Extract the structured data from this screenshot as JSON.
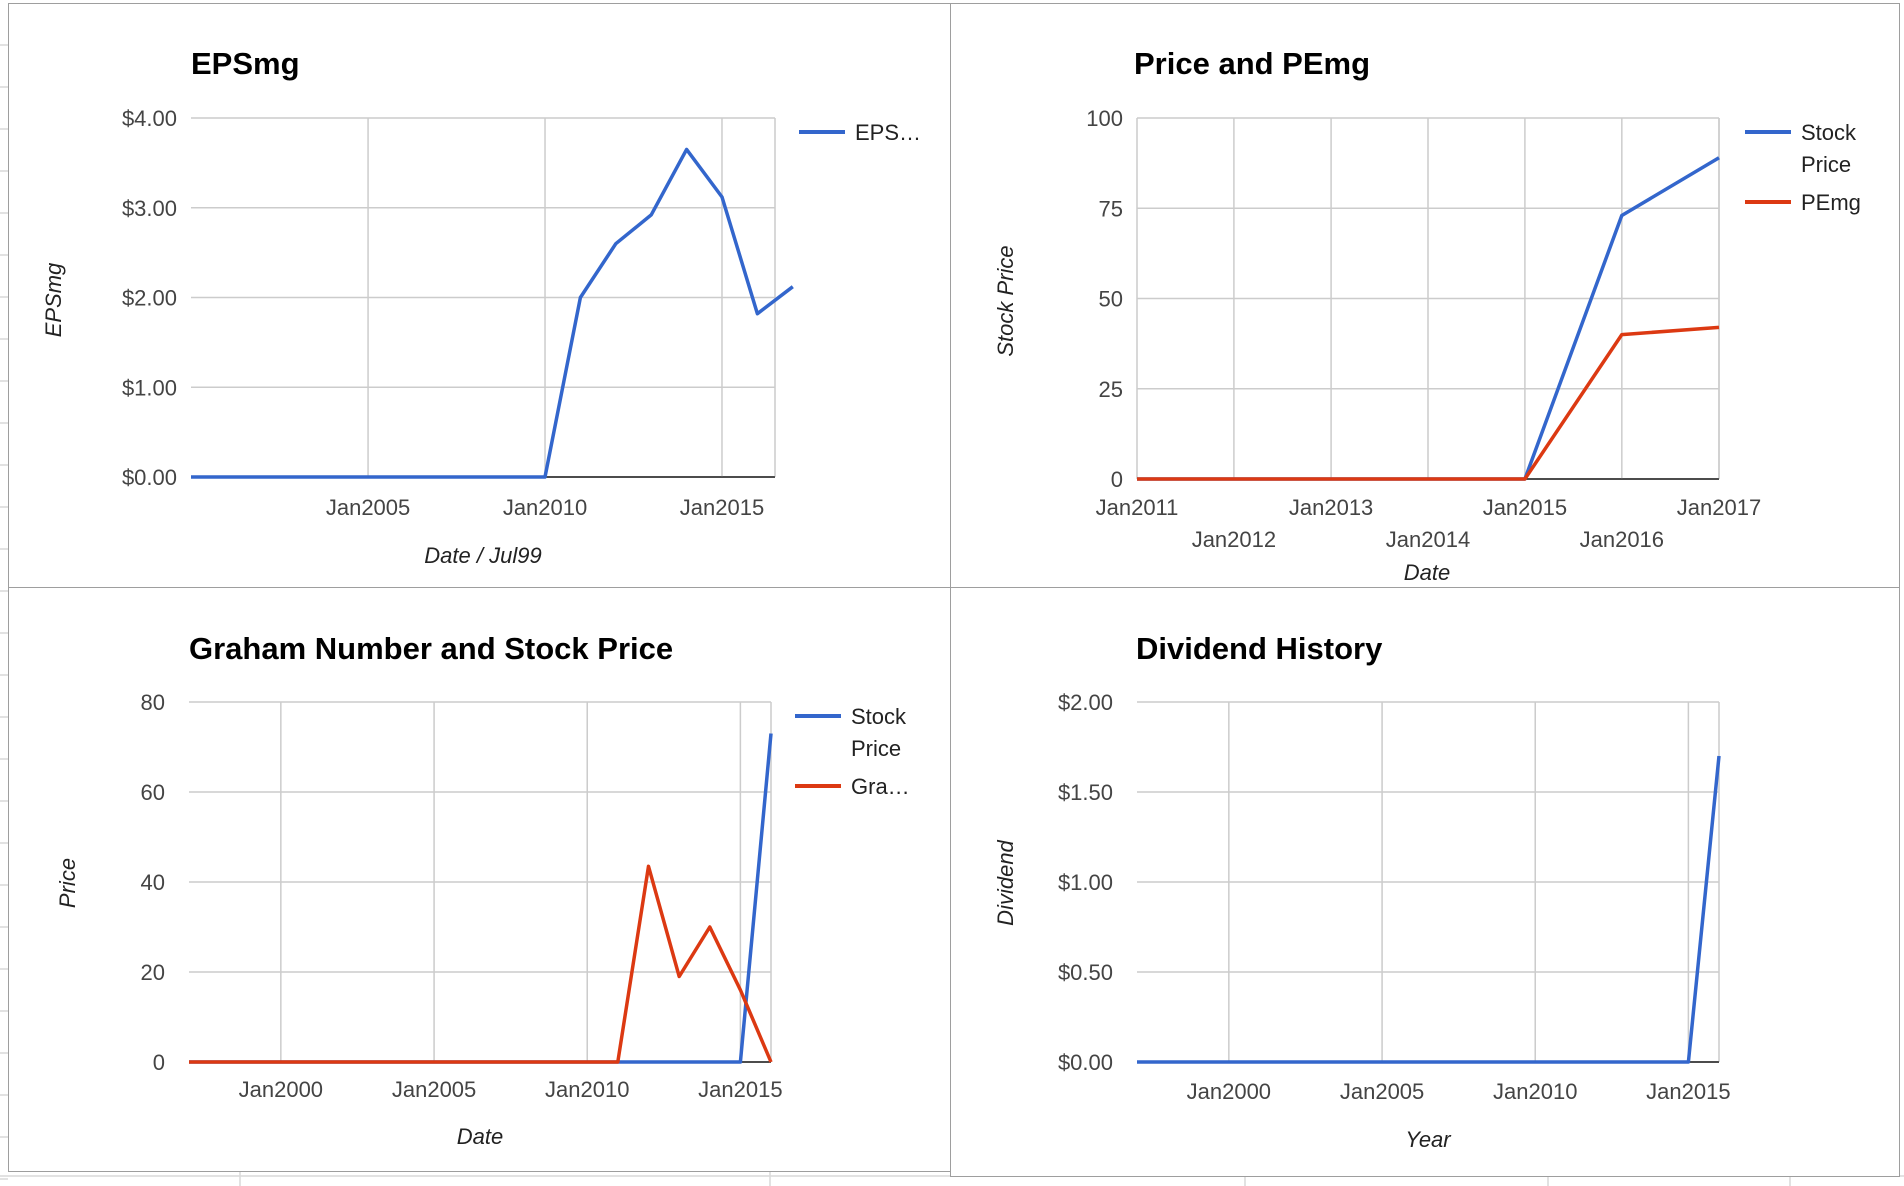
{
  "colors": {
    "blue": "#3366cc",
    "red": "#dc3912"
  },
  "chart_data": [
    {
      "type": "line",
      "title": "EPSmg",
      "xlabel": "Date / Jul99",
      "ylabel": "EPSmg",
      "x_type": "date",
      "xlim": [
        "2000-01-01",
        "2016-07-01"
      ],
      "ylim": [
        0,
        4
      ],
      "grid": true,
      "legend_position": "right",
      "x_ticks": [
        {
          "date": "2005-01-01",
          "label": "Jan2005"
        },
        {
          "date": "2010-01-01",
          "label": "Jan2010"
        },
        {
          "date": "2015-01-01",
          "label": "Jan2015"
        }
      ],
      "y_ticks": [
        {
          "value": 0,
          "label": "$0.00"
        },
        {
          "value": 1,
          "label": "$1.00"
        },
        {
          "value": 2,
          "label": "$2.00"
        },
        {
          "value": 3,
          "label": "$3.00"
        },
        {
          "value": 4,
          "label": "$4.00"
        }
      ],
      "series": [
        {
          "legend": [
            "EPS…"
          ],
          "color": "#3366cc",
          "points": [
            [
              "2000-01-01",
              0
            ],
            [
              "2010-01-01",
              0
            ],
            [
              "2011-01-01",
              2.0
            ],
            [
              "2012-01-01",
              2.6
            ],
            [
              "2013-01-01",
              2.92
            ],
            [
              "2014-01-01",
              3.65
            ],
            [
              "2015-01-01",
              3.12
            ],
            [
              "2016-01-01",
              1.82
            ],
            [
              "2017-01-01",
              2.12
            ]
          ]
        }
      ]
    },
    {
      "type": "line",
      "title": "Price and PEmg",
      "xlabel": "Date",
      "ylabel": "Stock Price",
      "x_type": "date",
      "xlim": [
        "2011-01-01",
        "2017-01-01"
      ],
      "ylim": [
        0,
        100
      ],
      "grid": true,
      "legend_position": "right",
      "x_ticks": [
        {
          "date": "2011-01-01",
          "label": "Jan2011",
          "row": 1
        },
        {
          "date": "2012-01-01",
          "label": "Jan2012",
          "row": 2
        },
        {
          "date": "2013-01-01",
          "label": "Jan2013",
          "row": 1
        },
        {
          "date": "2014-01-01",
          "label": "Jan2014",
          "row": 2
        },
        {
          "date": "2015-01-01",
          "label": "Jan2015",
          "row": 1
        },
        {
          "date": "2016-01-01",
          "label": "Jan2016",
          "row": 2
        },
        {
          "date": "2017-01-01",
          "label": "Jan2017",
          "row": 1
        }
      ],
      "y_ticks": [
        {
          "value": 0,
          "label": "0"
        },
        {
          "value": 25,
          "label": "25"
        },
        {
          "value": 50,
          "label": "50"
        },
        {
          "value": 75,
          "label": "75"
        },
        {
          "value": 100,
          "label": "100"
        }
      ],
      "series": [
        {
          "legend": [
            "Stock",
            "Price"
          ],
          "color": "#3366cc",
          "points": [
            [
              "2011-01-01",
              0
            ],
            [
              "2015-01-01",
              0
            ],
            [
              "2016-01-01",
              73
            ],
            [
              "2017-01-01",
              89
            ]
          ]
        },
        {
          "legend": [
            "PEmg"
          ],
          "color": "#dc3912",
          "points": [
            [
              "2011-01-01",
              0
            ],
            [
              "2015-01-01",
              0
            ],
            [
              "2016-01-01",
              40
            ],
            [
              "2017-01-01",
              42
            ]
          ]
        }
      ]
    },
    {
      "type": "line",
      "title": "Graham Number and Stock Price",
      "xlabel": "Date",
      "ylabel": "Price",
      "x_type": "date",
      "xlim": [
        "1997-01-01",
        "2016-01-01"
      ],
      "ylim": [
        0,
        80
      ],
      "grid": true,
      "legend_position": "right",
      "x_ticks": [
        {
          "date": "2000-01-01",
          "label": "Jan2000"
        },
        {
          "date": "2005-01-01",
          "label": "Jan2005"
        },
        {
          "date": "2010-01-01",
          "label": "Jan2010"
        },
        {
          "date": "2015-01-01",
          "label": "Jan2015"
        }
      ],
      "y_ticks": [
        {
          "value": 0,
          "label": "0"
        },
        {
          "value": 20,
          "label": "20"
        },
        {
          "value": 40,
          "label": "40"
        },
        {
          "value": 60,
          "label": "60"
        },
        {
          "value": 80,
          "label": "80"
        }
      ],
      "series": [
        {
          "legend": [
            "Stock",
            "Price"
          ],
          "color": "#3366cc",
          "points": [
            [
              "1997-01-01",
              0
            ],
            [
              "2015-01-01",
              0
            ],
            [
              "2016-01-01",
              73
            ]
          ]
        },
        {
          "legend": [
            "Gra…"
          ],
          "color": "#dc3912",
          "points": [
            [
              "1997-01-01",
              0
            ],
            [
              "2011-01-01",
              0
            ],
            [
              "2012-01-01",
              43.5
            ],
            [
              "2013-01-01",
              19
            ],
            [
              "2014-01-01",
              30
            ],
            [
              "2015-01-01",
              16
            ],
            [
              "2016-01-01",
              0
            ]
          ]
        }
      ]
    },
    {
      "type": "line",
      "title": "Dividend History",
      "xlabel": "Year",
      "ylabel": "Dividend",
      "x_type": "date",
      "xlim": [
        "1997-01-01",
        "2016-01-01"
      ],
      "ylim": [
        0,
        2
      ],
      "grid": true,
      "legend_position": "none",
      "x_ticks": [
        {
          "date": "2000-01-01",
          "label": "Jan2000"
        },
        {
          "date": "2005-01-01",
          "label": "Jan2005"
        },
        {
          "date": "2010-01-01",
          "label": "Jan2010"
        },
        {
          "date": "2015-01-01",
          "label": "Jan2015"
        }
      ],
      "y_ticks": [
        {
          "value": 0,
          "label": "$0.00"
        },
        {
          "value": 0.5,
          "label": "$0.50"
        },
        {
          "value": 1,
          "label": "$1.00"
        },
        {
          "value": 1.5,
          "label": "$1.50"
        },
        {
          "value": 2,
          "label": "$2.00"
        }
      ],
      "series": [
        {
          "legend": [],
          "color": "#3366cc",
          "points": [
            [
              "1997-01-01",
              0
            ],
            [
              "2015-01-01",
              0
            ],
            [
              "2016-01-01",
              1.7
            ]
          ]
        }
      ]
    }
  ]
}
